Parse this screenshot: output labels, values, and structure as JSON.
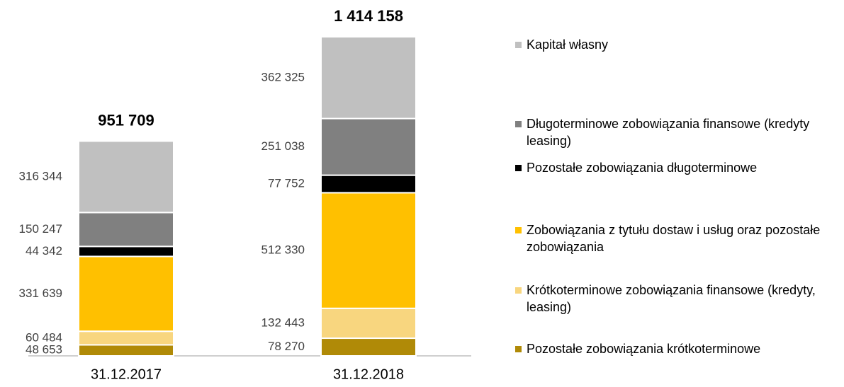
{
  "chart_data": {
    "type": "stacked_bar",
    "categories": [
      "31.12.2017",
      "31.12.2018"
    ],
    "totals": [
      951709,
      1414158
    ],
    "total_labels": [
      "951 709",
      "1 414 158"
    ],
    "series": [
      {
        "name": "Pozostałe zobowiązania krótkoterminowe",
        "color": "#b08a07",
        "values": [
          48653,
          78270
        ],
        "value_labels": [
          "48 653",
          "78 270"
        ]
      },
      {
        "name": "Krótkoterminowe zobowiązania finansowe (kredyty, leasing)",
        "color": "#f8d67f",
        "values": [
          60484,
          132443
        ],
        "value_labels": [
          "60 484",
          "132 443"
        ]
      },
      {
        "name": "Zobowiązania z tytułu dostaw i usług oraz pozostałe zobowiązania",
        "color": "#ffc000",
        "values": [
          331639,
          512330
        ],
        "value_labels": [
          "331 639",
          "512 330"
        ]
      },
      {
        "name": "Pozostałe zobowiązania długoterminowe",
        "color": "#000000",
        "values": [
          44342,
          77752
        ],
        "value_labels": [
          "44 342",
          "77 752"
        ]
      },
      {
        "name": "Długoterminowe zobowiązania finansowe (kredyty leasing)",
        "color": "#808080",
        "values": [
          150247,
          251038
        ],
        "value_labels": [
          "150 247",
          "251 038"
        ]
      },
      {
        "name": "Kapitał własny",
        "color": "#c0c0c0",
        "values": [
          316344,
          362325
        ],
        "value_labels": [
          "316 344",
          "362 325"
        ]
      }
    ]
  }
}
